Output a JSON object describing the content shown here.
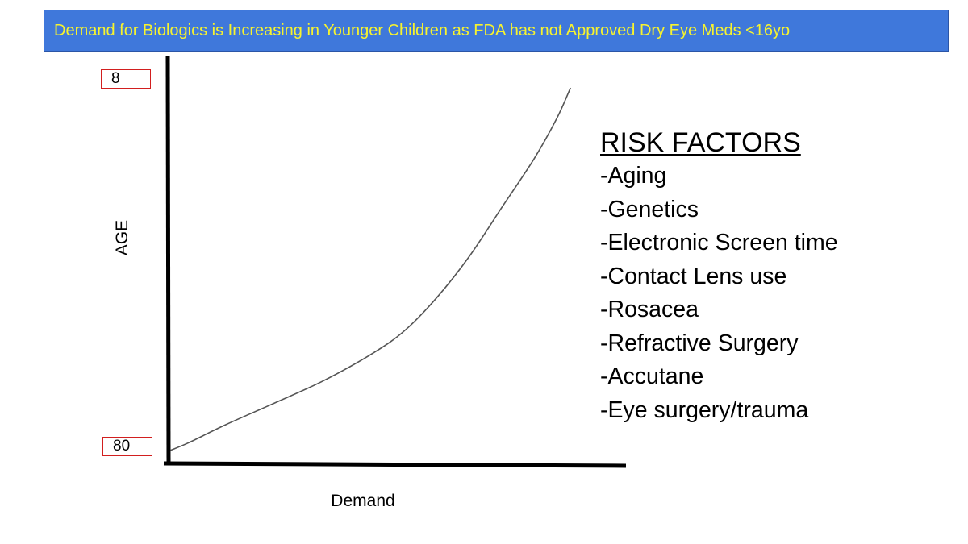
{
  "banner": {
    "title": "Demand for Biologics is Increasing in Younger Children as FDA has not Approved Dry Eye Meds <16yo"
  },
  "colors": {
    "banner_bg": "#3f78db",
    "banner_text": "#f7f32e",
    "tick_box_border": "#d21f1f",
    "curve": "#555555",
    "axes": "#000000"
  },
  "chart_data": {
    "type": "line",
    "xlabel": "Demand",
    "ylabel": "AGE",
    "y_tick_labels": {
      "top": "8",
      "bottom": "80"
    },
    "x_scale": "unlabeled (relative demand, 0–100)",
    "ylim": [
      80,
      8
    ],
    "grid": false,
    "series": [
      {
        "points": [
          {
            "x": 2,
            "y": 79
          },
          {
            "x": 6,
            "y": 77.5
          },
          {
            "x": 14,
            "y": 74
          },
          {
            "x": 24,
            "y": 70
          },
          {
            "x": 35,
            "y": 65.5
          },
          {
            "x": 46,
            "y": 60
          },
          {
            "x": 53,
            "y": 55.5
          },
          {
            "x": 60,
            "y": 49
          },
          {
            "x": 67,
            "y": 41
          },
          {
            "x": 74,
            "y": 31.5
          },
          {
            "x": 81,
            "y": 22
          },
          {
            "x": 86,
            "y": 14
          },
          {
            "x": 89,
            "y": 8
          }
        ]
      }
    ]
  },
  "risk_factors": {
    "title": "RISK FACTORS",
    "items": [
      "-Aging",
      "-Genetics",
      "-Electronic Screen time",
      "-Contact Lens use",
      "-Rosacea",
      "-Refractive Surgery",
      "-Accutane",
      "-Eye surgery/trauma"
    ]
  }
}
